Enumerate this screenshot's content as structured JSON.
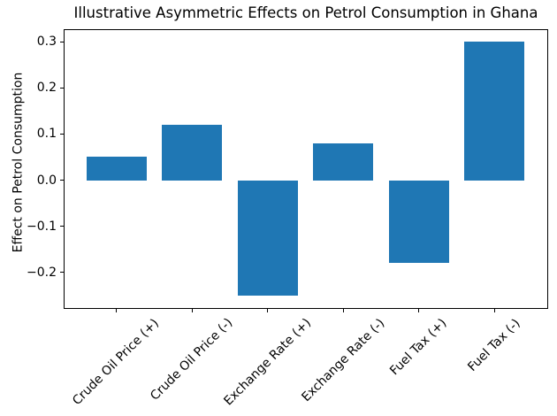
{
  "chart_data": {
    "type": "bar",
    "title": "Illustrative Asymmetric Effects on Petrol Consumption in Ghana",
    "ylabel": "Effect on Petrol Consumption",
    "xlabel": "",
    "categories": [
      "Crude Oil Price (+)",
      "Crude Oil Price (-)",
      "Exchange Rate (+)",
      "Exchange Rate (-)",
      "Fuel Tax (+)",
      "Fuel Tax (-)"
    ],
    "values": [
      0.05,
      0.12,
      -0.25,
      0.08,
      -0.18,
      0.3
    ],
    "x_positions": [
      0,
      1,
      2,
      3,
      4,
      5
    ],
    "bar_width": 0.8,
    "bar_color": "#1f77b4",
    "axis_color": "#000000",
    "text_color": "#000000",
    "background_color": "#ffffff",
    "yticks": [
      0.3,
      0.2,
      0.1,
      0.0,
      -0.1,
      -0.2
    ],
    "ytick_labels": [
      "0.3",
      "0.2",
      "0.1",
      "0.0",
      "−0.1",
      "−0.2"
    ],
    "ylim": [
      -0.2775,
      0.3275
    ],
    "xlim": [
      -0.7,
      5.7
    ],
    "grid": false,
    "legend": false,
    "xtick_rotation_deg": 45
  }
}
